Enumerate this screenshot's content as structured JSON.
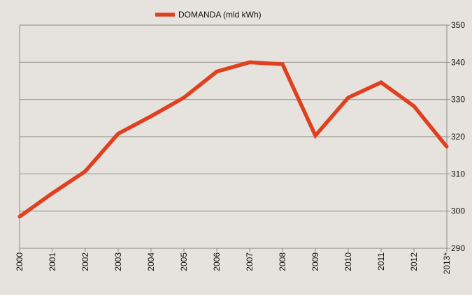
{
  "chart_data": {
    "type": "line",
    "title": "",
    "xlabel": "",
    "ylabel": "",
    "x": [
      "2000",
      "2001",
      "2002",
      "2003",
      "2004",
      "2005",
      "2006",
      "2007",
      "2008",
      "2009",
      "2010",
      "2011",
      "2012",
      "2013*"
    ],
    "series": [
      {
        "name": "DOMANDA (mld kWh)",
        "color": "#e0401f",
        "values": [
          298.5,
          304.8,
          310.7,
          320.8,
          325.5,
          330.5,
          337.5,
          340.0,
          339.5,
          320.3,
          330.5,
          334.6,
          328.2,
          317.3
        ]
      }
    ],
    "ylim": [
      290,
      350
    ],
    "yticks": [
      "290",
      "300",
      "310",
      "320",
      "330",
      "340",
      "350"
    ],
    "y_axis_side": "right",
    "grid": "horizontal",
    "legend_position": "top-center"
  },
  "colors": {
    "background": "#e6e3de",
    "gridline": "#9c9a96",
    "axis": "#8a8884",
    "text": "#111111"
  }
}
